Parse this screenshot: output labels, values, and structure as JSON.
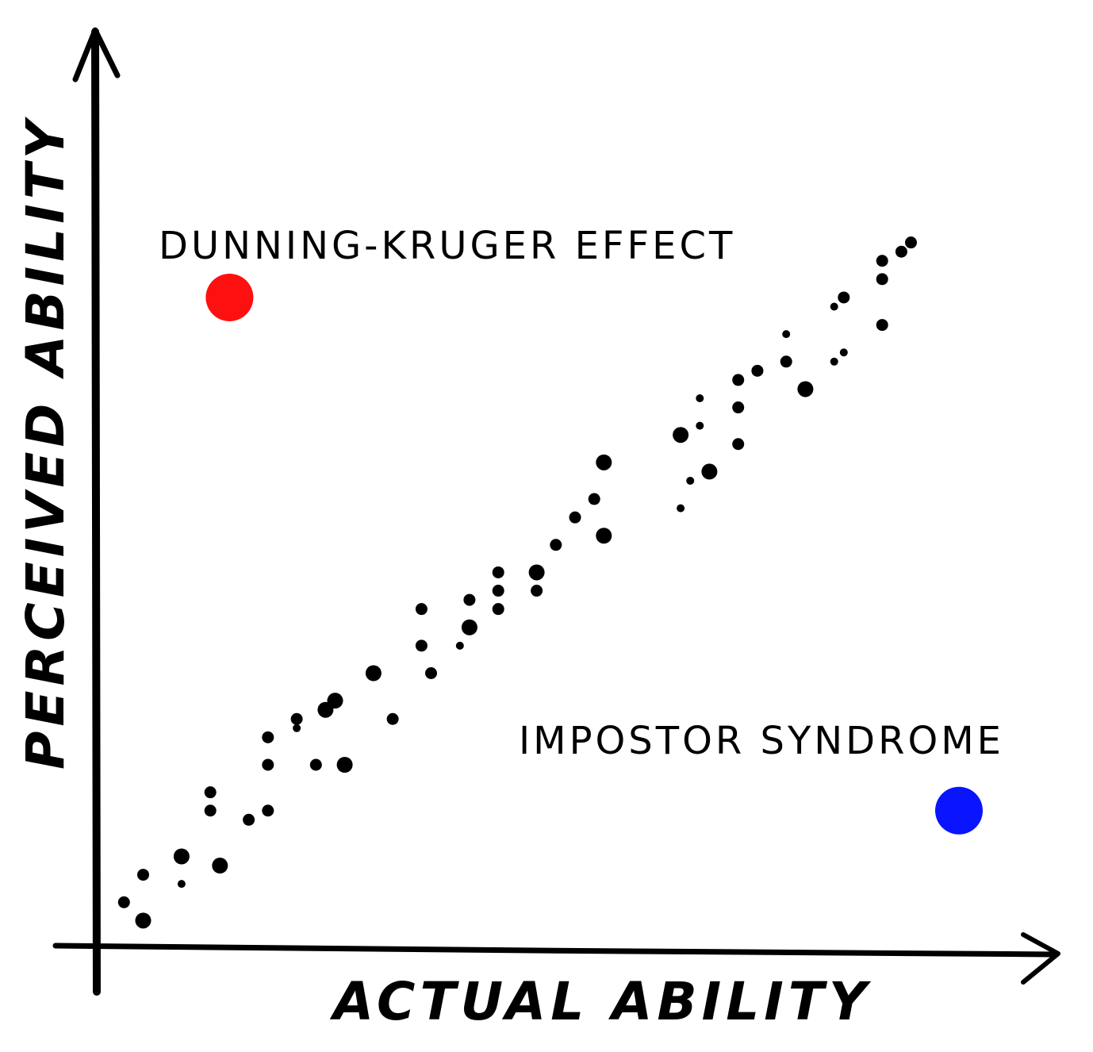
{
  "chart_data": {
    "type": "scatter",
    "xlabel": "ACTUAL ABILITY",
    "ylabel": "PERCEIVED ABILITY",
    "xlim": [
      0,
      100
    ],
    "ylim": [
      0,
      100
    ],
    "grid": false,
    "colors": {
      "points": "#000000",
      "dunning_kruger": "#ff1010",
      "impostor": "#0a14ff",
      "axes": "#000000"
    },
    "annotations": [
      {
        "text": "DUNNING-KRUGER EFFECT",
        "marker_color": "#ff1010",
        "x": 14,
        "y": 71
      },
      {
        "text": "IMPOSTOR SYNDROME",
        "marker_color": "#0a14ff",
        "x": 90,
        "y": 15
      }
    ],
    "points": [
      {
        "x": 3,
        "y": 5,
        "s": 1
      },
      {
        "x": 5,
        "y": 3,
        "s": 2
      },
      {
        "x": 5,
        "y": 8,
        "s": 1
      },
      {
        "x": 9,
        "y": 10,
        "s": 2
      },
      {
        "x": 9,
        "y": 7,
        "s": 0
      },
      {
        "x": 13,
        "y": 9,
        "s": 2
      },
      {
        "x": 12,
        "y": 15,
        "s": 1
      },
      {
        "x": 12,
        "y": 17,
        "s": 1
      },
      {
        "x": 16,
        "y": 14,
        "s": 1
      },
      {
        "x": 18,
        "y": 15,
        "s": 1
      },
      {
        "x": 18,
        "y": 20,
        "s": 1
      },
      {
        "x": 18,
        "y": 23,
        "s": 1
      },
      {
        "x": 21,
        "y": 24,
        "s": 0
      },
      {
        "x": 21,
        "y": 25,
        "s": 1
      },
      {
        "x": 23,
        "y": 20,
        "s": 1
      },
      {
        "x": 24,
        "y": 26,
        "s": 2
      },
      {
        "x": 25,
        "y": 27,
        "s": 2
      },
      {
        "x": 26,
        "y": 20,
        "s": 2
      },
      {
        "x": 29,
        "y": 30,
        "s": 2
      },
      {
        "x": 31,
        "y": 25,
        "s": 1
      },
      {
        "x": 34,
        "y": 33,
        "s": 1
      },
      {
        "x": 34,
        "y": 37,
        "s": 1
      },
      {
        "x": 35,
        "y": 30,
        "s": 1
      },
      {
        "x": 38,
        "y": 33,
        "s": 0
      },
      {
        "x": 39,
        "y": 35,
        "s": 2
      },
      {
        "x": 39,
        "y": 38,
        "s": 1
      },
      {
        "x": 42,
        "y": 37,
        "s": 1
      },
      {
        "x": 42,
        "y": 39,
        "s": 1
      },
      {
        "x": 42,
        "y": 41,
        "s": 1
      },
      {
        "x": 46,
        "y": 39,
        "s": 1
      },
      {
        "x": 46,
        "y": 41,
        "s": 2
      },
      {
        "x": 48,
        "y": 44,
        "s": 1
      },
      {
        "x": 50,
        "y": 47,
        "s": 1
      },
      {
        "x": 52,
        "y": 49,
        "s": 1
      },
      {
        "x": 53,
        "y": 45,
        "s": 2
      },
      {
        "x": 53,
        "y": 53,
        "s": 2
      },
      {
        "x": 61,
        "y": 48,
        "s": 0
      },
      {
        "x": 62,
        "y": 51,
        "s": 0
      },
      {
        "x": 61,
        "y": 56,
        "s": 2
      },
      {
        "x": 63,
        "y": 57,
        "s": 0
      },
      {
        "x": 63,
        "y": 60,
        "s": 0
      },
      {
        "x": 64,
        "y": 52,
        "s": 2
      },
      {
        "x": 67,
        "y": 55,
        "s": 1
      },
      {
        "x": 67,
        "y": 59,
        "s": 1
      },
      {
        "x": 67,
        "y": 62,
        "s": 1
      },
      {
        "x": 69,
        "y": 63,
        "s": 1
      },
      {
        "x": 72,
        "y": 64,
        "s": 1
      },
      {
        "x": 72,
        "y": 67,
        "s": 0
      },
      {
        "x": 74,
        "y": 61,
        "s": 2
      },
      {
        "x": 77,
        "y": 64,
        "s": 0
      },
      {
        "x": 78,
        "y": 65,
        "s": 0
      },
      {
        "x": 77,
        "y": 70,
        "s": 0
      },
      {
        "x": 78,
        "y": 71,
        "s": 1
      },
      {
        "x": 82,
        "y": 68,
        "s": 1
      },
      {
        "x": 82,
        "y": 73,
        "s": 1
      },
      {
        "x": 82,
        "y": 75,
        "s": 1
      },
      {
        "x": 84,
        "y": 76,
        "s": 1
      },
      {
        "x": 85,
        "y": 77,
        "s": 1
      }
    ]
  }
}
